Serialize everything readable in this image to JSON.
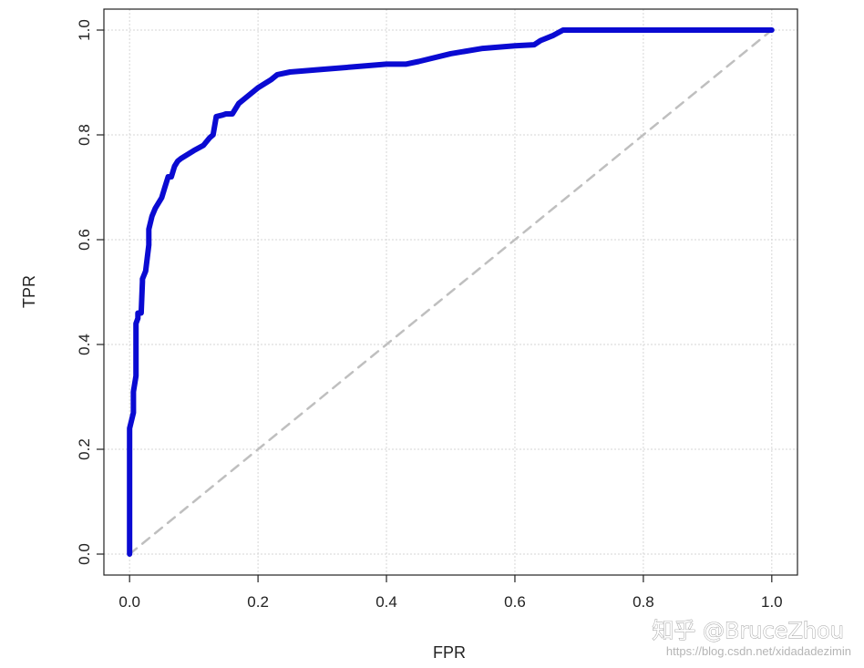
{
  "chart_data": {
    "type": "line",
    "title": "",
    "xlabel": "FPR",
    "ylabel": "TPR",
    "xlim": [
      -0.04,
      1.04
    ],
    "ylim": [
      -0.04,
      1.04
    ],
    "x_ticks": [
      "0.0",
      "0.2",
      "0.4",
      "0.6",
      "0.8",
      "1.0"
    ],
    "y_ticks": [
      "0.0",
      "0.2",
      "0.4",
      "0.6",
      "0.8",
      "1.0"
    ],
    "grid": true,
    "series": [
      {
        "color": "#0a0ad2",
        "style": "solid",
        "x": [
          0.0,
          0.0,
          0.003,
          0.006,
          0.006,
          0.01,
          0.01,
          0.013,
          0.013,
          0.018,
          0.02,
          0.02,
          0.025,
          0.03,
          0.03,
          0.035,
          0.04,
          0.05,
          0.055,
          0.06,
          0.065,
          0.07,
          0.075,
          0.08,
          0.1,
          0.115,
          0.125,
          0.13,
          0.135,
          0.145,
          0.15,
          0.16,
          0.17,
          0.18,
          0.2,
          0.22,
          0.23,
          0.25,
          0.3,
          0.35,
          0.4,
          0.43,
          0.45,
          0.5,
          0.55,
          0.6,
          0.63,
          0.64,
          0.66,
          0.675,
          0.7,
          0.8,
          0.9,
          1.0
        ],
        "y": [
          0.0,
          0.24,
          0.255,
          0.27,
          0.31,
          0.34,
          0.44,
          0.45,
          0.46,
          0.46,
          0.52,
          0.525,
          0.54,
          0.59,
          0.62,
          0.645,
          0.66,
          0.68,
          0.7,
          0.72,
          0.72,
          0.74,
          0.75,
          0.755,
          0.77,
          0.78,
          0.795,
          0.8,
          0.835,
          0.838,
          0.84,
          0.84,
          0.86,
          0.87,
          0.89,
          0.905,
          0.915,
          0.92,
          0.925,
          0.93,
          0.935,
          0.935,
          0.94,
          0.955,
          0.965,
          0.97,
          0.972,
          0.98,
          0.99,
          1.0,
          1.0,
          1.0,
          1.0,
          1.0
        ]
      },
      {
        "color": "#bfbfbf",
        "style": "dashed",
        "x": [
          0,
          1
        ],
        "y": [
          0,
          1
        ]
      }
    ]
  },
  "watermark": {
    "main": "知乎 @BruceZhou",
    "url": "https://blog.csdn.net/xidadadezimin"
  }
}
